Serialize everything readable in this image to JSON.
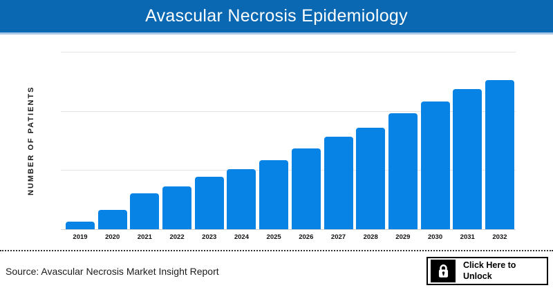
{
  "header": {
    "title": "Avascular Necrosis Epidemiology",
    "bg_color": "#0a68b2",
    "accent_strip_color": "#a9c7e6"
  },
  "chart_data": {
    "type": "bar",
    "title": "Avascular Necrosis Epidemiology",
    "ylabel": "NUMBER OF PATIENTS",
    "xlabel": "",
    "categories": [
      "2019",
      "2020",
      "2021",
      "2022",
      "2023",
      "2024",
      "2025",
      "2026",
      "2027",
      "2028",
      "2029",
      "2030",
      "2031",
      "2032"
    ],
    "values": [
      0.13,
      0.33,
      0.61,
      0.72,
      0.89,
      1.02,
      1.17,
      1.37,
      1.56,
      1.72,
      1.96,
      2.16,
      2.37,
      2.52
    ],
    "value_note": "y-axis has no numeric tick labels; values estimated in gridline units (1 unit = spacing between horizontal gridlines)",
    "ylim": [
      0,
      3
    ],
    "gridline_values": [
      1,
      2,
      3
    ],
    "bar_color": "#0783e6",
    "grid_color": "#e3e3e3",
    "axis_color": "#cfcfcf",
    "grid": "horizontal-only",
    "legend_position": "none"
  },
  "footer": {
    "source": "Source: Avascular Necrosis Market Insight Report",
    "unlock_button": {
      "line1": "Click Here to",
      "line2": "Unlock",
      "icon": "lock-icon"
    }
  }
}
